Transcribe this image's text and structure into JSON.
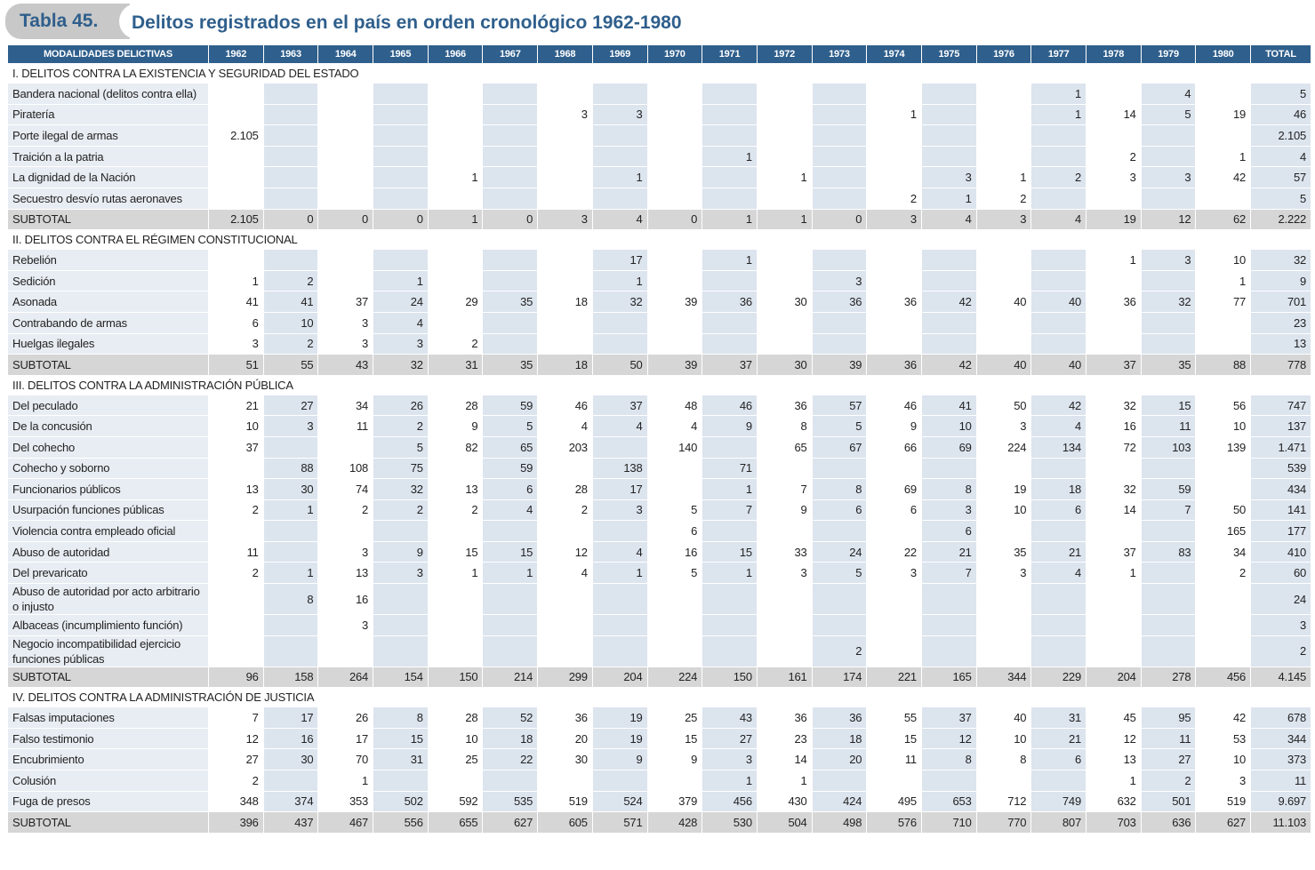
{
  "header": {
    "label": "Tabla 45.",
    "title": "Delitos registrados en el país en orden cronológico 1962-1980"
  },
  "table": {
    "columns": [
      "MODALIDADES DELICTIVAS",
      "1962",
      "1963",
      "1964",
      "1965",
      "1966",
      "1967",
      "1968",
      "1969",
      "1970",
      "1971",
      "1972",
      "1973",
      "1974",
      "1975",
      "1976",
      "1977",
      "1978",
      "1979",
      "1980",
      "TOTAL"
    ],
    "sections": [
      {
        "title": "I. DELITOS CONTRA LA EXISTENCIA Y SEGURIDAD DEL ESTADO",
        "rows": [
          {
            "label": "Bandera nacional (delitos contra ella)",
            "cells": [
              null,
              null,
              null,
              null,
              null,
              null,
              null,
              null,
              null,
              null,
              null,
              null,
              null,
              null,
              null,
              "1",
              null,
              "4",
              null,
              "5"
            ]
          },
          {
            "label": "Piratería",
            "cells": [
              null,
              null,
              null,
              null,
              null,
              null,
              "3",
              "3",
              null,
              null,
              null,
              null,
              "1",
              null,
              null,
              "1",
              "14",
              "5",
              "19",
              "46"
            ]
          },
          {
            "label": "Porte ilegal de armas",
            "cells": [
              "2.105",
              null,
              null,
              null,
              null,
              null,
              null,
              null,
              null,
              null,
              null,
              null,
              null,
              null,
              null,
              null,
              null,
              null,
              null,
              "2.105"
            ]
          },
          {
            "label": "Traición a la patria",
            "cells": [
              null,
              null,
              null,
              null,
              null,
              null,
              null,
              null,
              null,
              "1",
              null,
              null,
              null,
              null,
              null,
              null,
              "2",
              null,
              "1",
              "4"
            ]
          },
          {
            "label": "La dignidad de la Nación",
            "cells": [
              null,
              null,
              null,
              null,
              "1",
              null,
              null,
              "1",
              null,
              null,
              "1",
              null,
              null,
              "3",
              "1",
              "2",
              "3",
              "3",
              "42",
              "57"
            ]
          },
          {
            "label": "Secuestro desvío rutas aeronaves",
            "cells": [
              null,
              null,
              null,
              null,
              null,
              null,
              null,
              null,
              null,
              null,
              null,
              null,
              "2",
              "1",
              "2",
              null,
              null,
              null,
              null,
              "5"
            ]
          }
        ],
        "subtotal": {
          "label": "SUBTOTAL",
          "cells": [
            "2.105",
            "0",
            "0",
            "0",
            "1",
            "0",
            "3",
            "4",
            "0",
            "1",
            "1",
            "0",
            "3",
            "4",
            "3",
            "4",
            "19",
            "12",
            "62",
            "2.222"
          ]
        }
      },
      {
        "title": "II. DELITOS CONTRA EL RÉGIMEN CONSTITUCIONAL",
        "rows": [
          {
            "label": "Rebelión",
            "cells": [
              null,
              null,
              null,
              null,
              null,
              null,
              null,
              "17",
              null,
              "1",
              null,
              null,
              null,
              null,
              null,
              null,
              "1",
              "3",
              "10",
              "32"
            ]
          },
          {
            "label": "Sedición",
            "cells": [
              "1",
              "2",
              null,
              "1",
              null,
              null,
              null,
              "1",
              null,
              null,
              null,
              "3",
              null,
              null,
              null,
              null,
              null,
              null,
              "1",
              "9"
            ]
          },
          {
            "label": "Asonada",
            "cells": [
              "41",
              "41",
              "37",
              "24",
              "29",
              "35",
              "18",
              "32",
              "39",
              "36",
              "30",
              "36",
              "36",
              "42",
              "40",
              "40",
              "36",
              "32",
              "77",
              "701"
            ]
          },
          {
            "label": "Contrabando de armas",
            "cells": [
              "6",
              "10",
              "3",
              "4",
              null,
              null,
              null,
              null,
              null,
              null,
              null,
              null,
              null,
              null,
              null,
              null,
              null,
              null,
              null,
              "23"
            ]
          },
          {
            "label": "Huelgas ilegales",
            "cells": [
              "3",
              "2",
              "3",
              "3",
              "2",
              null,
              null,
              null,
              null,
              null,
              null,
              null,
              null,
              null,
              null,
              null,
              null,
              null,
              null,
              "13"
            ]
          }
        ],
        "subtotal": {
          "label": "SUBTOTAL",
          "cells": [
            "51",
            "55",
            "43",
            "32",
            "31",
            "35",
            "18",
            "50",
            "39",
            "37",
            "30",
            "39",
            "36",
            "42",
            "40",
            "40",
            "37",
            "35",
            "88",
            "778"
          ]
        }
      },
      {
        "title": "III. DELITOS CONTRA LA ADMINISTRACIÓN PÚBLICA",
        "rows": [
          {
            "label": "Del peculado",
            "cells": [
              "21",
              "27",
              "34",
              "26",
              "28",
              "59",
              "46",
              "37",
              "48",
              "46",
              "36",
              "57",
              "46",
              "41",
              "50",
              "42",
              "32",
              "15",
              "56",
              "747"
            ]
          },
          {
            "label": "De la concusión",
            "cells": [
              "10",
              "3",
              "11",
              "2",
              "9",
              "5",
              "4",
              "4",
              "4",
              "9",
              "8",
              "5",
              "9",
              "10",
              "3",
              "4",
              "16",
              "11",
              "10",
              "137"
            ]
          },
          {
            "label": "Del cohecho",
            "cells": [
              "37",
              null,
              null,
              "5",
              "82",
              "65",
              "203",
              null,
              "140",
              null,
              "65",
              "67",
              "66",
              "69",
              "224",
              "134",
              "72",
              "103",
              "139",
              "1.471"
            ]
          },
          {
            "label": "Cohecho y soborno",
            "cells": [
              null,
              "88",
              "108",
              "75",
              null,
              "59",
              null,
              "138",
              null,
              "71",
              null,
              null,
              null,
              null,
              null,
              null,
              null,
              null,
              null,
              "539"
            ]
          },
          {
            "label": "Funcionarios públicos",
            "cells": [
              "13",
              "30",
              "74",
              "32",
              "13",
              "6",
              "28",
              "17",
              null,
              "1",
              "7",
              "8",
              "69",
              "8",
              "19",
              "18",
              "32",
              "59",
              null,
              "434"
            ]
          },
          {
            "label": "Usurpación funciones públicas",
            "cells": [
              "2",
              "1",
              "2",
              "2",
              "2",
              "4",
              "2",
              "3",
              "5",
              "7",
              "9",
              "6",
              "6",
              "3",
              "10",
              "6",
              "14",
              "7",
              "50",
              "141"
            ]
          },
          {
            "label": "Violencia contra empleado oficial",
            "cells": [
              null,
              null,
              null,
              null,
              null,
              null,
              null,
              null,
              "6",
              null,
              null,
              null,
              null,
              "6",
              null,
              null,
              null,
              null,
              "165",
              "177"
            ]
          },
          {
            "label": "Abuso de autoridad",
            "cells": [
              "11",
              null,
              "3",
              "9",
              "15",
              "15",
              "12",
              "4",
              "16",
              "15",
              "33",
              "24",
              "22",
              "21",
              "35",
              "21",
              "37",
              "83",
              "34",
              "410"
            ]
          },
          {
            "label": "Del prevaricato",
            "cells": [
              "2",
              "1",
              "13",
              "3",
              "1",
              "1",
              "4",
              "1",
              "5",
              "1",
              "3",
              "5",
              "3",
              "7",
              "3",
              "4",
              "1",
              null,
              "2",
              "60"
            ]
          },
          {
            "label": "Abuso de autoridad por acto arbitrario o injusto",
            "cells": [
              null,
              "8",
              "16",
              null,
              null,
              null,
              null,
              null,
              null,
              null,
              null,
              null,
              null,
              null,
              null,
              null,
              null,
              null,
              null,
              "24"
            ]
          },
          {
            "label": "Albaceas (incumplimiento función)",
            "cells": [
              null,
              null,
              "3",
              null,
              null,
              null,
              null,
              null,
              null,
              null,
              null,
              null,
              null,
              null,
              null,
              null,
              null,
              null,
              null,
              "3"
            ]
          },
          {
            "label": "Negocio incompatibilidad ejercicio funciones públicas",
            "cells": [
              null,
              null,
              null,
              null,
              null,
              null,
              null,
              null,
              null,
              null,
              null,
              "2",
              null,
              null,
              null,
              null,
              null,
              null,
              null,
              "2"
            ]
          }
        ],
        "subtotal": {
          "label": "SUBTOTAL",
          "cells": [
            "96",
            "158",
            "264",
            "154",
            "150",
            "214",
            "299",
            "204",
            "224",
            "150",
            "161",
            "174",
            "221",
            "165",
            "344",
            "229",
            "204",
            "278",
            "456",
            "4.145"
          ]
        }
      },
      {
        "title": "IV. DELITOS CONTRA LA ADMINISTRACIÓN DE JUSTICIA",
        "rows": [
          {
            "label": "Falsas imputaciones",
            "cells": [
              "7",
              "17",
              "26",
              "8",
              "28",
              "52",
              "36",
              "19",
              "25",
              "43",
              "36",
              "36",
              "55",
              "37",
              "40",
              "31",
              "45",
              "95",
              "42",
              "678"
            ]
          },
          {
            "label": "Falso testimonio",
            "cells": [
              "12",
              "16",
              "17",
              "15",
              "10",
              "18",
              "20",
              "19",
              "15",
              "27",
              "23",
              "18",
              "15",
              "12",
              "10",
              "21",
              "12",
              "11",
              "53",
              "344"
            ]
          },
          {
            "label": "Encubrimiento",
            "cells": [
              "27",
              "30",
              "70",
              "31",
              "25",
              "22",
              "30",
              "9",
              "9",
              "3",
              "14",
              "20",
              "11",
              "8",
              "8",
              "6",
              "13",
              "27",
              "10",
              "373"
            ]
          },
          {
            "label": "Colusión",
            "cells": [
              "2",
              null,
              "1",
              null,
              null,
              null,
              null,
              null,
              null,
              "1",
              "1",
              null,
              null,
              null,
              null,
              null,
              "1",
              "2",
              "3",
              "11"
            ]
          },
          {
            "label": "Fuga de presos",
            "cells": [
              "348",
              "374",
              "353",
              "502",
              "592",
              "535",
              "519",
              "524",
              "379",
              "456",
              "430",
              "424",
              "495",
              "653",
              "712",
              "749",
              "632",
              "501",
              "519",
              "9.697"
            ]
          }
        ],
        "subtotal": {
          "label": "SUBTOTAL",
          "cells": [
            "396",
            "437",
            "467",
            "556",
            "655",
            "627",
            "605",
            "571",
            "428",
            "530",
            "504",
            "498",
            "576",
            "710",
            "770",
            "807",
            "703",
            "636",
            "627",
            "11.103"
          ]
        }
      }
    ]
  }
}
